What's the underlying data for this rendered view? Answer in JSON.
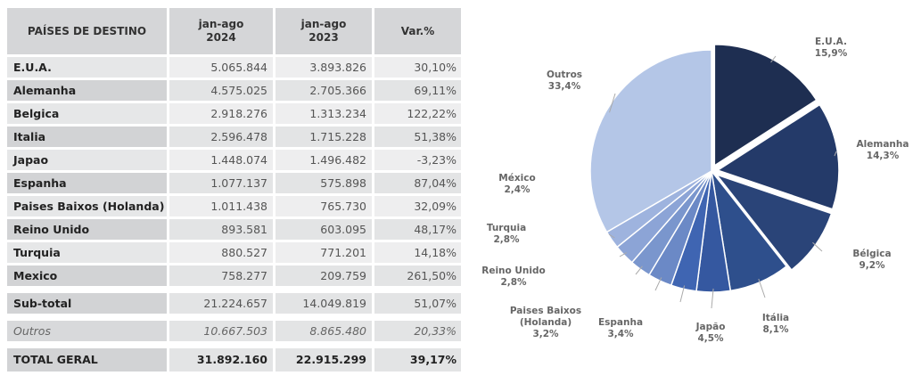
{
  "table": {
    "headers": [
      "PAÍSES DE DESTINO",
      "jan-ago\n2024",
      "jan-ago\n2023",
      "Var.%"
    ],
    "rows": [
      [
        "E.U.A.",
        "5.065.844",
        "3.893.826",
        "30,10%"
      ],
      [
        "Alemanha",
        "4.575.025",
        "2.705.366",
        "69,11%"
      ],
      [
        "Belgica",
        "2.918.276",
        "1.313.234",
        "122,22%"
      ],
      [
        "Italia",
        "2.596.478",
        "1.715.228",
        "51,38%"
      ],
      [
        "Japao",
        "1.448.074",
        "1.496.482",
        "-3,23%"
      ],
      [
        "Espanha",
        "1.077.137",
        "575.898",
        "87,04%"
      ],
      [
        "Paises Baixos (Holanda)",
        "1.011.438",
        "765.730",
        "32,09%"
      ],
      [
        "Reino Unido",
        "893.581",
        "603.095",
        "48,17%"
      ],
      [
        "Turquia",
        "880.527",
        "771.201",
        "14,18%"
      ],
      [
        "Mexico",
        "758.277",
        "209.759",
        "261,50%"
      ]
    ],
    "subtotal": [
      "Sub-total",
      "21.224.657",
      "14.049.819",
      "51,07%"
    ],
    "outros": [
      "Outros",
      "10.667.503",
      "8.865.480",
      "20,33%"
    ],
    "total": [
      "TOTAL GERAL",
      "31.892.160",
      "22.915.299",
      "39,17%"
    ]
  },
  "chart_data": {
    "type": "pie",
    "slices": [
      {
        "label": "E.U.A.",
        "value": 15.9,
        "display": "15,9%",
        "color": "#1e2e51"
      },
      {
        "label": "Alemanha",
        "value": 14.3,
        "display": "14,3%",
        "color": "#243a69"
      },
      {
        "label": "Bélgica",
        "value": 9.2,
        "display": "9,2%",
        "color": "#2a4478"
      },
      {
        "label": "Itália",
        "value": 8.1,
        "display": "8,1%",
        "color": "#2e4f8c"
      },
      {
        "label": "Japão",
        "value": 4.5,
        "display": "4,5%",
        "color": "#3558a0"
      },
      {
        "label": "Espanha",
        "value": 3.4,
        "display": "3,4%",
        "color": "#3f65b2"
      },
      {
        "label": "Paises Baixos\n(Holanda)",
        "value": 3.2,
        "display": "3,2%",
        "color": "#6b89c6"
      },
      {
        "label": "Reino Unido",
        "value": 2.8,
        "display": "2,8%",
        "color": "#7a96cd"
      },
      {
        "label": "Turquia",
        "value": 2.8,
        "display": "2,8%",
        "color": "#8ca4d6"
      },
      {
        "label": "México",
        "value": 2.4,
        "display": "2,4%",
        "color": "#9eb3de"
      },
      {
        "label": "Outros",
        "value": 33.4,
        "display": "33,4%",
        "color": "#b4c6e7"
      }
    ]
  }
}
